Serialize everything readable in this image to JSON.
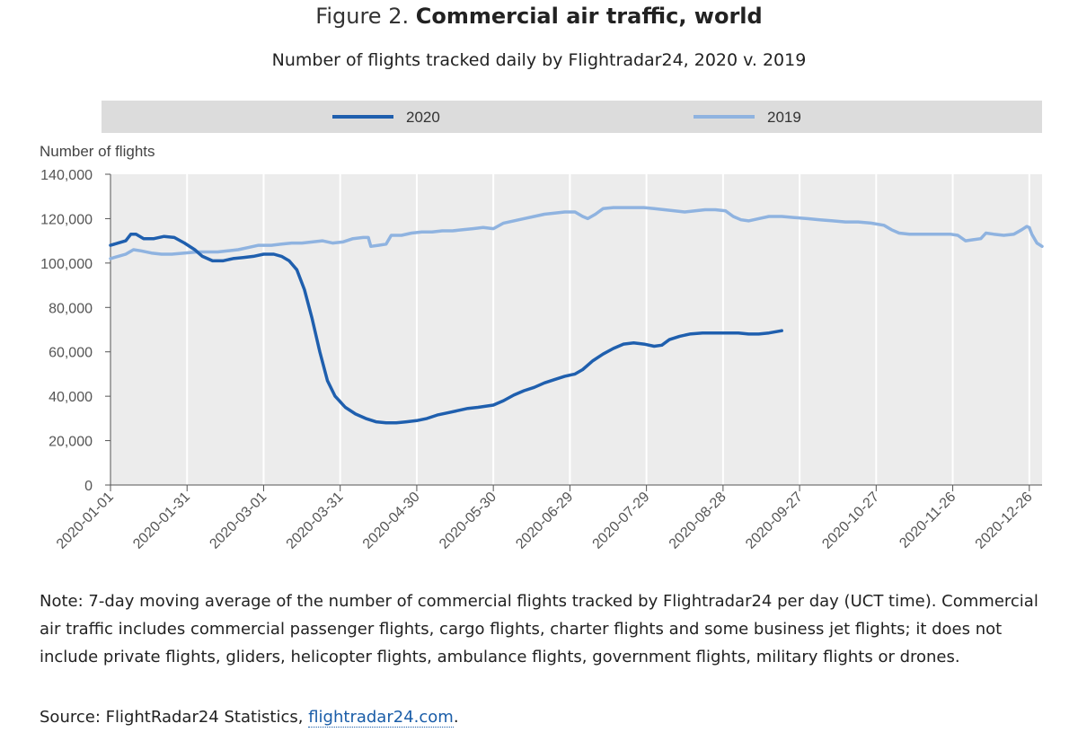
{
  "figure": {
    "prefix": "Figure 2.",
    "title": "Commercial air traffic, world",
    "subtitle": "Number of flights tracked daily by Flightradar24, 2020 v. 2019"
  },
  "chart_data": {
    "type": "line",
    "ylabel": "Number of flights",
    "ylim": [
      0,
      140000
    ],
    "y_ticks": [
      0,
      20000,
      40000,
      60000,
      80000,
      100000,
      120000,
      140000
    ],
    "y_tick_labels": [
      "0",
      "20,000",
      "40,000",
      "60,000",
      "80,000",
      "100,000",
      "120,000",
      "140,000"
    ],
    "x_tick_labels": [
      "2020-01-01",
      "2020-01-31",
      "2020-03-01",
      "2020-03-31",
      "2020-04-30",
      "2020-05-30",
      "2020-06-29",
      "2020-07-29",
      "2020-08-28",
      "2020-09-27",
      "2020-10-27",
      "2020-11-26",
      "2020-12-26"
    ],
    "xlim": [
      "2020-01-01",
      "2020-12-31"
    ],
    "grid": "vertical",
    "legend_position": "top",
    "series": [
      {
        "name": "2020",
        "color": "#1f5fae",
        "points": [
          [
            "2020-01-01",
            108000
          ],
          [
            "2020-01-04",
            109000
          ],
          [
            "2020-01-07",
            110000
          ],
          [
            "2020-01-09",
            113000
          ],
          [
            "2020-01-11",
            113000
          ],
          [
            "2020-01-14",
            111000
          ],
          [
            "2020-01-18",
            111000
          ],
          [
            "2020-01-22",
            112000
          ],
          [
            "2020-01-26",
            111500
          ],
          [
            "2020-01-30",
            109000
          ],
          [
            "2020-02-03",
            106000
          ],
          [
            "2020-02-06",
            103000
          ],
          [
            "2020-02-10",
            101000
          ],
          [
            "2020-02-14",
            101000
          ],
          [
            "2020-02-18",
            102000
          ],
          [
            "2020-02-22",
            102500
          ],
          [
            "2020-02-26",
            103000
          ],
          [
            "2020-03-01",
            104000
          ],
          [
            "2020-03-05",
            104000
          ],
          [
            "2020-03-08",
            103000
          ],
          [
            "2020-03-11",
            101000
          ],
          [
            "2020-03-14",
            97000
          ],
          [
            "2020-03-17",
            88000
          ],
          [
            "2020-03-20",
            75000
          ],
          [
            "2020-03-23",
            60000
          ],
          [
            "2020-03-26",
            47000
          ],
          [
            "2020-03-29",
            40000
          ],
          [
            "2020-04-02",
            35000
          ],
          [
            "2020-04-06",
            32000
          ],
          [
            "2020-04-10",
            30000
          ],
          [
            "2020-04-14",
            28500
          ],
          [
            "2020-04-18",
            28000
          ],
          [
            "2020-04-22",
            28000
          ],
          [
            "2020-04-26",
            28500
          ],
          [
            "2020-04-30",
            29000
          ],
          [
            "2020-05-04",
            30000
          ],
          [
            "2020-05-08",
            31500
          ],
          [
            "2020-05-12",
            32500
          ],
          [
            "2020-05-16",
            33500
          ],
          [
            "2020-05-20",
            34500
          ],
          [
            "2020-05-24",
            35000
          ],
          [
            "2020-05-30",
            36000
          ],
          [
            "2020-06-03",
            38000
          ],
          [
            "2020-06-07",
            40500
          ],
          [
            "2020-06-11",
            42500
          ],
          [
            "2020-06-15",
            44000
          ],
          [
            "2020-06-19",
            46000
          ],
          [
            "2020-06-23",
            47500
          ],
          [
            "2020-06-27",
            49000
          ],
          [
            "2020-07-01",
            50000
          ],
          [
            "2020-07-04",
            52000
          ],
          [
            "2020-07-08",
            56000
          ],
          [
            "2020-07-12",
            59000
          ],
          [
            "2020-07-16",
            61500
          ],
          [
            "2020-07-20",
            63500
          ],
          [
            "2020-07-24",
            64000
          ],
          [
            "2020-07-28",
            63500
          ],
          [
            "2020-08-01",
            62500
          ],
          [
            "2020-08-04",
            63000
          ],
          [
            "2020-08-07",
            65500
          ],
          [
            "2020-08-11",
            67000
          ],
          [
            "2020-08-15",
            68000
          ],
          [
            "2020-08-20",
            68500
          ],
          [
            "2020-08-25",
            68500
          ],
          [
            "2020-08-30",
            68500
          ],
          [
            "2020-09-03",
            68500
          ],
          [
            "2020-09-07",
            68000
          ],
          [
            "2020-09-11",
            68000
          ],
          [
            "2020-09-15",
            68500
          ],
          [
            "2020-09-20",
            69500
          ]
        ]
      },
      {
        "name": "2019",
        "color": "#8fb3e0",
        "points": [
          [
            "2020-01-01",
            102000
          ],
          [
            "2020-01-04",
            103000
          ],
          [
            "2020-01-07",
            104000
          ],
          [
            "2020-01-10",
            106000
          ],
          [
            "2020-01-13",
            105500
          ],
          [
            "2020-01-17",
            104500
          ],
          [
            "2020-01-21",
            104000
          ],
          [
            "2020-01-25",
            104000
          ],
          [
            "2020-01-30",
            104500
          ],
          [
            "2020-02-04",
            105000
          ],
          [
            "2020-02-08",
            105000
          ],
          [
            "2020-02-12",
            105000
          ],
          [
            "2020-02-16",
            105500
          ],
          [
            "2020-02-20",
            106000
          ],
          [
            "2020-02-24",
            107000
          ],
          [
            "2020-02-28",
            108000
          ],
          [
            "2020-03-04",
            108000
          ],
          [
            "2020-03-08",
            108500
          ],
          [
            "2020-03-12",
            109000
          ],
          [
            "2020-03-16",
            109000
          ],
          [
            "2020-03-20",
            109500
          ],
          [
            "2020-03-24",
            110000
          ],
          [
            "2020-03-28",
            109000
          ],
          [
            "2020-04-01",
            109500
          ],
          [
            "2020-04-05",
            111000
          ],
          [
            "2020-04-09",
            111500
          ],
          [
            "2020-04-11",
            111500
          ],
          [
            "2020-04-12",
            107500
          ],
          [
            "2020-04-15",
            108000
          ],
          [
            "2020-04-18",
            108500
          ],
          [
            "2020-04-20",
            112500
          ],
          [
            "2020-04-24",
            112500
          ],
          [
            "2020-04-28",
            113500
          ],
          [
            "2020-05-02",
            114000
          ],
          [
            "2020-05-06",
            114000
          ],
          [
            "2020-05-10",
            114500
          ],
          [
            "2020-05-14",
            114500
          ],
          [
            "2020-05-18",
            115000
          ],
          [
            "2020-05-22",
            115500
          ],
          [
            "2020-05-26",
            116000
          ],
          [
            "2020-05-30",
            115500
          ],
          [
            "2020-06-03",
            118000
          ],
          [
            "2020-06-07",
            119000
          ],
          [
            "2020-06-11",
            120000
          ],
          [
            "2020-06-15",
            121000
          ],
          [
            "2020-06-19",
            122000
          ],
          [
            "2020-06-23",
            122500
          ],
          [
            "2020-06-27",
            123000
          ],
          [
            "2020-07-01",
            123000
          ],
          [
            "2020-07-04",
            121000
          ],
          [
            "2020-07-06",
            120000
          ],
          [
            "2020-07-09",
            122000
          ],
          [
            "2020-07-12",
            124500
          ],
          [
            "2020-07-16",
            125000
          ],
          [
            "2020-07-20",
            125000
          ],
          [
            "2020-07-24",
            125000
          ],
          [
            "2020-07-28",
            125000
          ],
          [
            "2020-08-01",
            124500
          ],
          [
            "2020-08-05",
            124000
          ],
          [
            "2020-08-09",
            123500
          ],
          [
            "2020-08-13",
            123000
          ],
          [
            "2020-08-17",
            123500
          ],
          [
            "2020-08-21",
            124000
          ],
          [
            "2020-08-25",
            124000
          ],
          [
            "2020-08-29",
            123500
          ],
          [
            "2020-09-01",
            121000
          ],
          [
            "2020-09-04",
            119500
          ],
          [
            "2020-09-07",
            119000
          ],
          [
            "2020-09-11",
            120000
          ],
          [
            "2020-09-15",
            121000
          ],
          [
            "2020-09-20",
            121000
          ],
          [
            "2020-09-25",
            120500
          ],
          [
            "2020-09-30",
            120000
          ],
          [
            "2020-10-05",
            119500
          ],
          [
            "2020-10-10",
            119000
          ],
          [
            "2020-10-15",
            118500
          ],
          [
            "2020-10-20",
            118500
          ],
          [
            "2020-10-25",
            118000
          ],
          [
            "2020-10-30",
            117000
          ],
          [
            "2020-11-02",
            115000
          ],
          [
            "2020-11-05",
            113500
          ],
          [
            "2020-11-09",
            113000
          ],
          [
            "2020-11-13",
            113000
          ],
          [
            "2020-11-17",
            113000
          ],
          [
            "2020-11-21",
            113000
          ],
          [
            "2020-11-25",
            113000
          ],
          [
            "2020-11-28",
            112500
          ],
          [
            "2020-12-01",
            110000
          ],
          [
            "2020-12-04",
            110500
          ],
          [
            "2020-12-07",
            111000
          ],
          [
            "2020-12-09",
            113500
          ],
          [
            "2020-12-12",
            113000
          ],
          [
            "2020-12-16",
            112500
          ],
          [
            "2020-12-20",
            113000
          ],
          [
            "2020-12-23",
            115000
          ],
          [
            "2020-12-25",
            116500
          ],
          [
            "2020-12-26",
            116000
          ],
          [
            "2020-12-27",
            113000
          ],
          [
            "2020-12-29",
            109000
          ],
          [
            "2020-12-31",
            107500
          ]
        ]
      }
    ]
  },
  "note": "Note: 7-day moving average of the number of commercial flights tracked by Flightradar24 per day (UCT time). Commercial air traffic includes commercial passenger flights, cargo flights, charter flights and some business jet flights; it does not include private flights, gliders, helicopter flights, ambulance flights, government flights, military flights or drones.",
  "source": {
    "prefix": "Source: FlightRadar24 Statistics, ",
    "link": "flightradar24.com",
    "suffix": "."
  }
}
